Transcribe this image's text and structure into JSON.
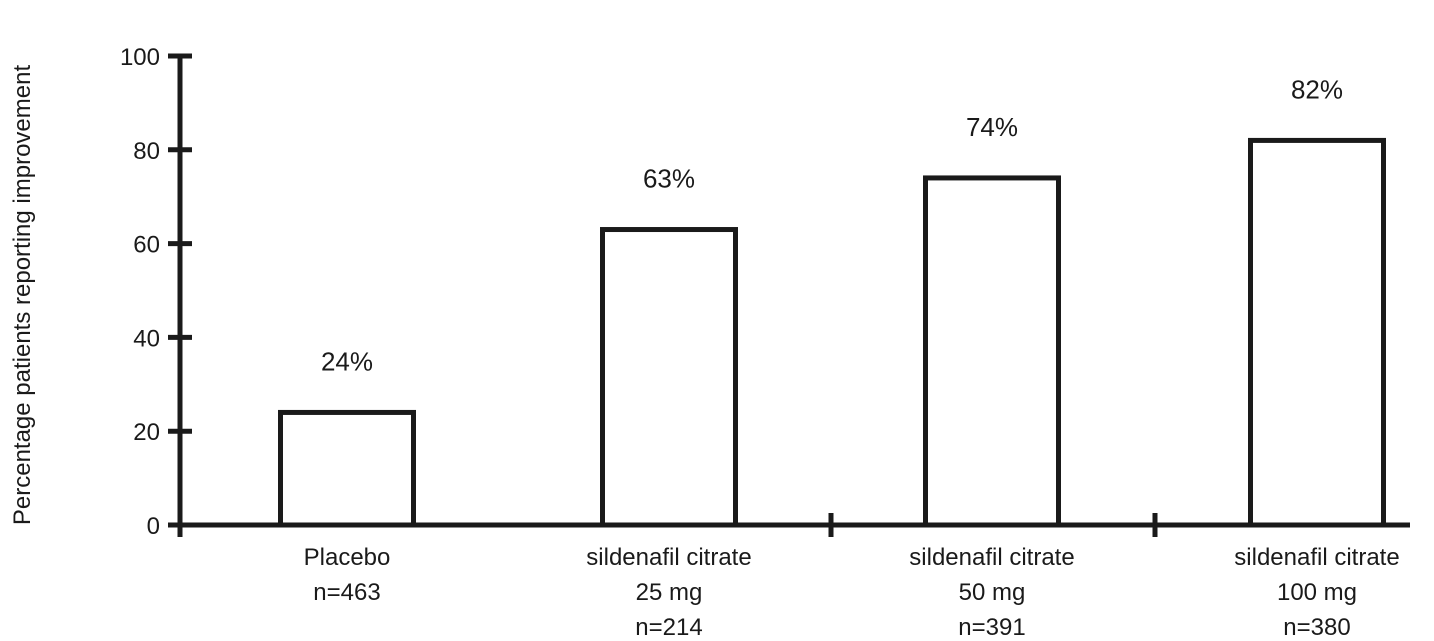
{
  "chart_data": {
    "type": "bar",
    "categories": [
      [
        "Placebo",
        "n=463"
      ],
      [
        "sildenafil citrate",
        "25 mg",
        "n=214"
      ],
      [
        "sildenafil citrate",
        "50 mg",
        "n=391"
      ],
      [
        "sildenafil citrate",
        "100 mg",
        "n=380"
      ]
    ],
    "values": [
      24,
      63,
      74,
      82
    ],
    "data_labels": [
      "24%",
      "63%",
      "74%",
      "82%"
    ],
    "title": "",
    "xlabel": "",
    "ylabel": "Percentage patients reporting improvement",
    "ylim": [
      0,
      100
    ],
    "yticks": [
      0,
      20,
      40,
      60,
      80,
      100
    ],
    "grid": false,
    "legend": "none",
    "bar_fill": "#ffffff",
    "bar_stroke": "#1a1a1a",
    "axis_color": "#1a1a1a"
  }
}
